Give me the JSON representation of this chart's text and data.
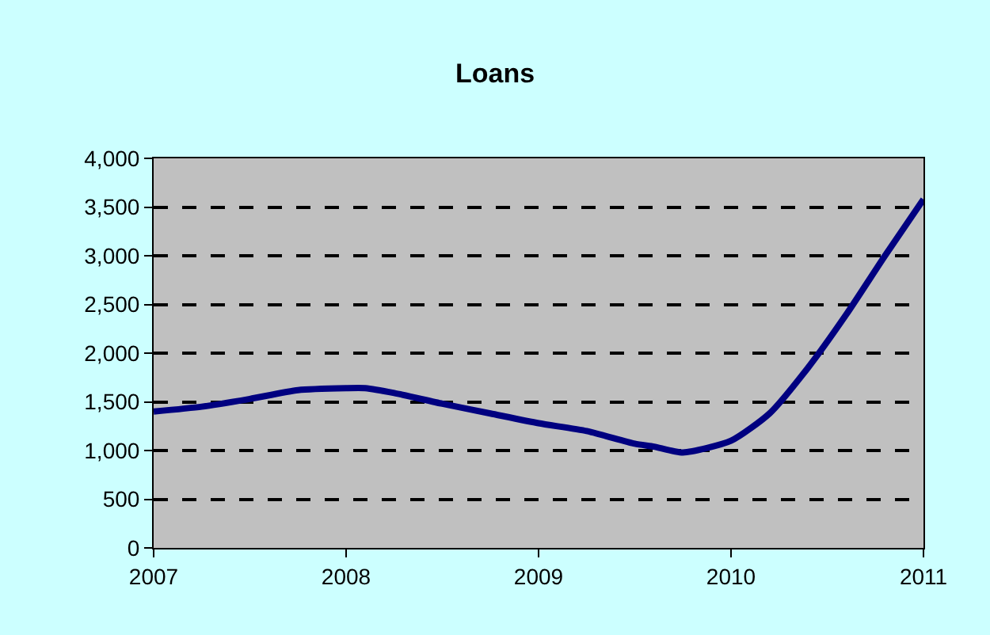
{
  "chart_data": {
    "type": "line",
    "title": "Loans",
    "x": [
      2007,
      2007.25,
      2007.5,
      2007.75,
      2008,
      2008.1,
      2008.25,
      2008.5,
      2008.75,
      2009,
      2009.25,
      2009.5,
      2009.6,
      2009.75,
      2010,
      2010.2,
      2010.4,
      2010.6,
      2010.8,
      2011
    ],
    "series": [
      {
        "color": "#000080",
        "values": [
          1400,
          1450,
          1530,
          1620,
          1640,
          1640,
          1590,
          1480,
          1380,
          1280,
          1200,
          1070,
          1040,
          980,
          1100,
          1380,
          1850,
          2400,
          3000,
          3580
        ]
      }
    ],
    "xlim": [
      2007,
      2011
    ],
    "xticks": [
      2007,
      2008,
      2009,
      2010,
      2011
    ],
    "ylim": [
      0,
      4000
    ],
    "yticks": [
      0,
      500,
      {
        "value": 1000,
        "label": "1,000"
      },
      {
        "value": 1500,
        "label": "1,500"
      },
      {
        "value": 2000,
        "label": "2,000"
      },
      {
        "value": 2500,
        "label": "2,500"
      },
      {
        "value": 3000,
        "label": "3,000"
      },
      {
        "value": 3500,
        "label": "3,500"
      },
      {
        "value": 4000,
        "label": "4,000"
      }
    ],
    "grid": "y",
    "marker": "none",
    "line_style": "solid"
  }
}
